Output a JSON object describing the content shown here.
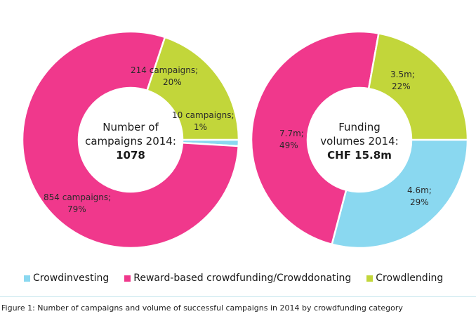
{
  "chart_data": [
    {
      "type": "pie",
      "categories": [
        "Crowdinvesting",
        "Reward-based crowdfunding/Crowddonating",
        "Crowdlending"
      ],
      "values": [
        10,
        854,
        214
      ],
      "units": "campaigns",
      "percent_labels": [
        "1%",
        "79%",
        "20%"
      ],
      "slice_labels": [
        [
          "10 campaigns;",
          "1%"
        ],
        [
          "854 campaigns;",
          "79%"
        ],
        [
          "214 campaigns;",
          "20%"
        ]
      ],
      "center_text": [
        "Number of",
        "campaigns 2014:"
      ],
      "center_value": "1078"
    },
    {
      "type": "pie",
      "categories": [
        "Crowdinvesting",
        "Reward-based crowdfunding/Crowddonating",
        "Crowdlending"
      ],
      "values": [
        4.6,
        7.7,
        3.5
      ],
      "units": "CHF m",
      "percent_labels": [
        "29%",
        "49%",
        "22%"
      ],
      "slice_labels": [
        [
          "4.6m;",
          "29%"
        ],
        [
          "7.7m;",
          "49%"
        ],
        [
          "3.5m;",
          "22%"
        ]
      ],
      "center_text": [
        "Funding",
        "volumes 2014:"
      ],
      "center_value": "CHF 15.8m"
    }
  ],
  "legend": {
    "items": [
      {
        "label": "Crowdinvesting",
        "color": "#8ad8f0"
      },
      {
        "label": "Reward-based crowdfunding/Crowddonating",
        "color": "#f0388c"
      },
      {
        "label": "Crowdlending",
        "color": "#c2d63a"
      }
    ]
  },
  "caption": "Figure 1: Number of campaigns and volume of successful campaigns in 2014 by crowdfunding category"
}
